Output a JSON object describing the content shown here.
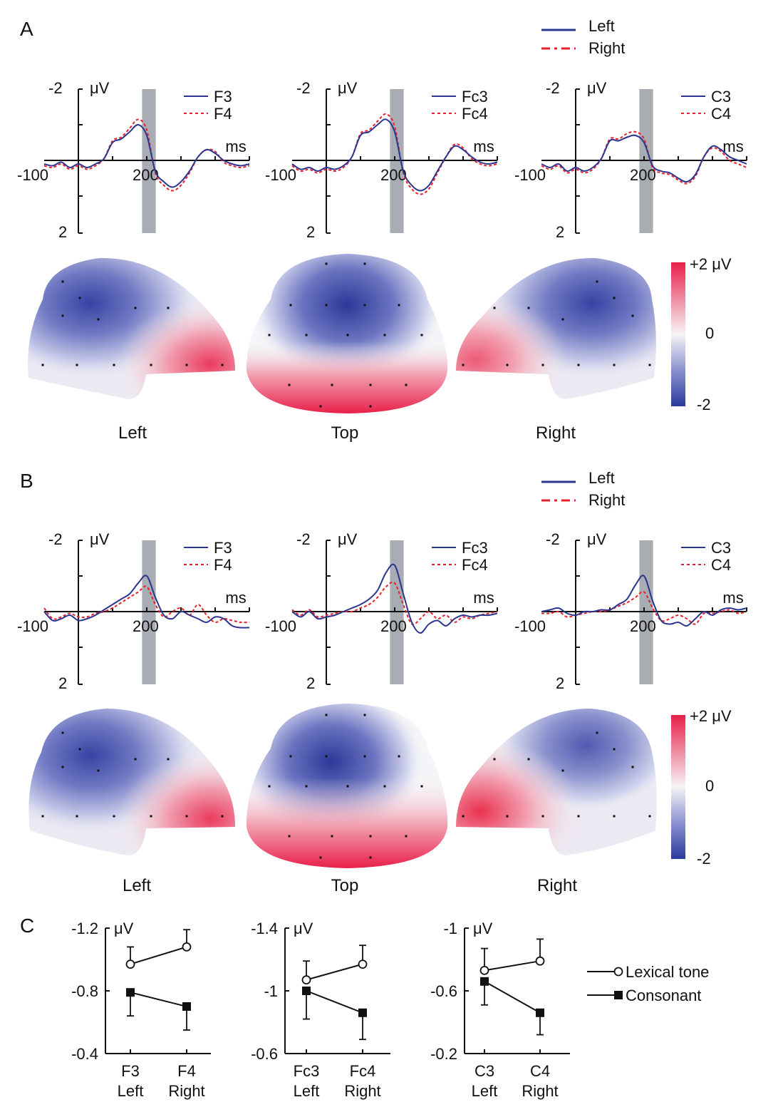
{
  "panels": [
    {
      "letter": "A",
      "legend": {
        "left": "Left",
        "right": "Right"
      },
      "waveforms": [
        {
          "top_label": "-2",
          "bottom_label": "2",
          "unit": "μV",
          "xunit": "ms",
          "x_tick_left": "-100",
          "x_tick_mid": "200",
          "series_left": "F3",
          "series_right": "F4"
        },
        {
          "top_label": "-2",
          "bottom_label": "2",
          "unit": "μV",
          "xunit": "ms",
          "x_tick_left": "-100",
          "x_tick_mid": "200",
          "series_left": "Fc3",
          "series_right": "Fc4"
        },
        {
          "top_label": "-2",
          "bottom_label": "2",
          "unit": "μV",
          "xunit": "ms",
          "x_tick_left": "-100",
          "x_tick_mid": "200",
          "series_left": "C3",
          "series_right": "C4"
        }
      ],
      "views": [
        "Left",
        "Top",
        "Right"
      ],
      "colorbar": {
        "max": "+2 μV",
        "mid": "0",
        "min": "-2"
      }
    },
    {
      "letter": "B",
      "legend": {
        "left": "Left",
        "right": "Right"
      },
      "waveforms": [
        {
          "top_label": "-2",
          "bottom_label": "2",
          "unit": "μV",
          "xunit": "ms",
          "x_tick_left": "-100",
          "x_tick_mid": "200",
          "series_left": "F3",
          "series_right": "F4"
        },
        {
          "top_label": "-2",
          "bottom_label": "2",
          "unit": "μV",
          "xunit": "ms",
          "x_tick_left": "-100",
          "x_tick_mid": "200",
          "series_left": "Fc3",
          "series_right": "Fc4"
        },
        {
          "top_label": "-2",
          "bottom_label": "2",
          "unit": "μV",
          "xunit": "ms",
          "x_tick_left": "-100",
          "x_tick_mid": "200",
          "series_left": "C3",
          "series_right": "C4"
        }
      ],
      "views": [
        "Left",
        "Top",
        "Right"
      ],
      "colorbar": {
        "max": "+2 μV",
        "mid": "0",
        "min": "-2"
      }
    }
  ],
  "panel_c": {
    "letter": "C"
  },
  "colors": {
    "left_series": "#2b3590",
    "right_series": "#e8202a",
    "shade": "#a7adb2",
    "neg": "#2a3a9c",
    "pos": "#e8204a"
  },
  "chart_data": [
    {
      "type": "line",
      "id": "A-F3",
      "xunit": "ms",
      "yunit": "μV",
      "xlim": [
        -100,
        500
      ],
      "ylim": [
        -2,
        2
      ],
      "inverted_y": true,
      "shaded_window_ms": [
        180,
        220
      ],
      "x": [
        -100,
        -75,
        -50,
        -25,
        0,
        25,
        50,
        75,
        100,
        125,
        150,
        175,
        200,
        225,
        250,
        275,
        300,
        325,
        350,
        375,
        400,
        425,
        450,
        475,
        500
      ],
      "series": [
        {
          "name": "F3",
          "values": [
            0.1,
            0.15,
            0.05,
            0.2,
            0.1,
            0.2,
            0.1,
            -0.05,
            -0.5,
            -0.6,
            -0.8,
            -1.0,
            -0.7,
            0.3,
            0.6,
            0.75,
            0.6,
            0.3,
            -0.1,
            -0.3,
            -0.2,
            0.0,
            0.1,
            0.15,
            0.1
          ]
        },
        {
          "name": "F4",
          "values": [
            0.15,
            0.2,
            0.1,
            0.25,
            0.15,
            0.25,
            0.15,
            -0.05,
            -0.55,
            -0.65,
            -0.9,
            -1.15,
            -0.85,
            0.35,
            0.7,
            0.85,
            0.7,
            0.35,
            -0.1,
            -0.3,
            -0.25,
            0.05,
            0.15,
            0.2,
            0.15
          ]
        }
      ]
    },
    {
      "type": "line",
      "id": "A-Fc3",
      "xunit": "ms",
      "yunit": "μV",
      "xlim": [
        -100,
        500
      ],
      "ylim": [
        -2,
        2
      ],
      "inverted_y": true,
      "shaded_window_ms": [
        180,
        220
      ],
      "x": [
        -100,
        -75,
        -50,
        -25,
        0,
        25,
        50,
        75,
        100,
        125,
        150,
        175,
        200,
        225,
        250,
        275,
        300,
        325,
        350,
        375,
        400,
        425,
        450,
        475,
        500
      ],
      "series": [
        {
          "name": "Fc3",
          "values": [
            0.1,
            0.25,
            0.2,
            0.3,
            0.2,
            0.25,
            0.15,
            -0.1,
            -0.7,
            -0.8,
            -1.0,
            -1.15,
            -0.8,
            0.3,
            0.7,
            0.85,
            0.7,
            0.3,
            -0.1,
            -0.4,
            -0.3,
            -0.1,
            0.05,
            0.1,
            0.05
          ]
        },
        {
          "name": "Fc4",
          "values": [
            0.15,
            0.3,
            0.25,
            0.35,
            0.25,
            0.3,
            0.2,
            -0.1,
            -0.75,
            -0.85,
            -1.1,
            -1.3,
            -0.95,
            0.35,
            0.8,
            0.95,
            0.8,
            0.35,
            -0.1,
            -0.45,
            -0.35,
            -0.05,
            0.1,
            0.15,
            0.1
          ]
        }
      ]
    },
    {
      "type": "line",
      "id": "A-C3",
      "xunit": "ms",
      "yunit": "μV",
      "xlim": [
        -100,
        500
      ],
      "ylim": [
        -2,
        2
      ],
      "inverted_y": true,
      "shaded_window_ms": [
        180,
        220
      ],
      "x": [
        -100,
        -75,
        -50,
        -25,
        0,
        25,
        50,
        75,
        100,
        125,
        150,
        175,
        200,
        225,
        250,
        275,
        300,
        325,
        350,
        375,
        400,
        425,
        450,
        475,
        500
      ],
      "series": [
        {
          "name": "C3",
          "values": [
            0.1,
            0.2,
            0.1,
            0.3,
            0.2,
            0.3,
            0.2,
            -0.05,
            -0.55,
            -0.55,
            -0.65,
            -0.7,
            -0.5,
            0.15,
            0.3,
            0.35,
            0.5,
            0.6,
            0.4,
            -0.1,
            -0.4,
            -0.3,
            -0.1,
            0.0,
            0.1
          ]
        },
        {
          "name": "C4",
          "values": [
            0.15,
            0.25,
            0.15,
            0.35,
            0.25,
            0.35,
            0.25,
            -0.05,
            -0.6,
            -0.6,
            -0.75,
            -0.8,
            -0.6,
            0.2,
            0.35,
            0.4,
            0.55,
            0.65,
            0.45,
            -0.1,
            -0.35,
            -0.25,
            0.0,
            0.1,
            0.2
          ]
        }
      ]
    },
    {
      "type": "line",
      "id": "B-F3",
      "xunit": "ms",
      "yunit": "μV",
      "xlim": [
        -100,
        500
      ],
      "ylim": [
        -2,
        2
      ],
      "inverted_y": true,
      "shaded_window_ms": [
        180,
        220
      ],
      "x": [
        -100,
        -75,
        -50,
        -25,
        0,
        25,
        50,
        75,
        100,
        125,
        150,
        175,
        200,
        225,
        250,
        275,
        300,
        325,
        350,
        375,
        400,
        425,
        450,
        475,
        500
      ],
      "series": [
        {
          "name": "F3",
          "values": [
            0.0,
            0.25,
            0.2,
            0.1,
            0.25,
            0.2,
            0.1,
            -0.05,
            -0.2,
            -0.35,
            -0.5,
            -0.8,
            -1.0,
            -0.4,
            0.1,
            0.2,
            0.0,
            0.1,
            0.2,
            0.3,
            0.15,
            0.2,
            0.4,
            0.45,
            0.45
          ]
        },
        {
          "name": "F4",
          "values": [
            -0.1,
            0.2,
            0.15,
            0.05,
            0.15,
            0.15,
            0.05,
            0.0,
            -0.1,
            -0.25,
            -0.4,
            -0.55,
            -0.7,
            -0.2,
            0.15,
            0.0,
            -0.1,
            0.1,
            -0.2,
            0.1,
            0.3,
            0.2,
            0.25,
            0.3,
            0.3
          ]
        }
      ]
    },
    {
      "type": "line",
      "id": "B-Fc3",
      "xunit": "ms",
      "yunit": "μV",
      "xlim": [
        -100,
        500
      ],
      "ylim": [
        -2,
        2
      ],
      "inverted_y": true,
      "shaded_window_ms": [
        180,
        220
      ],
      "x": [
        -100,
        -75,
        -50,
        -25,
        0,
        25,
        50,
        75,
        100,
        125,
        150,
        175,
        200,
        225,
        250,
        275,
        300,
        325,
        350,
        375,
        400,
        425,
        450,
        475,
        500
      ],
      "series": [
        {
          "name": "Fc3",
          "values": [
            0.0,
            0.15,
            0.0,
            0.2,
            0.15,
            0.1,
            0.0,
            -0.1,
            -0.2,
            -0.35,
            -0.6,
            -1.1,
            -1.3,
            -0.5,
            0.3,
            0.6,
            0.35,
            0.25,
            0.4,
            0.2,
            0.1,
            0.15,
            0.1,
            0.1,
            0.05
          ]
        },
        {
          "name": "Fc4",
          "values": [
            -0.05,
            0.1,
            -0.05,
            0.15,
            0.1,
            0.05,
            0.0,
            0.0,
            -0.1,
            -0.2,
            -0.4,
            -0.7,
            -0.8,
            -0.2,
            0.35,
            0.2,
            0.0,
            0.2,
            0.1,
            0.3,
            0.15,
            0.2,
            0.1,
            0.05,
            0.0
          ]
        }
      ]
    },
    {
      "type": "line",
      "id": "B-C3",
      "xunit": "ms",
      "yunit": "μV",
      "xlim": [
        -100,
        500
      ],
      "ylim": [
        -2,
        2
      ],
      "inverted_y": true,
      "shaded_window_ms": [
        180,
        220
      ],
      "x": [
        -100,
        -75,
        -50,
        -25,
        0,
        25,
        50,
        75,
        100,
        125,
        150,
        175,
        200,
        225,
        250,
        275,
        300,
        325,
        350,
        375,
        400,
        425,
        450,
        475,
        500
      ],
      "series": [
        {
          "name": "C3",
          "values": [
            0.0,
            -0.05,
            -0.1,
            0.05,
            0.1,
            0.0,
            0.0,
            -0.05,
            -0.05,
            -0.2,
            -0.35,
            -0.75,
            -1.0,
            -0.3,
            0.25,
            0.35,
            0.3,
            0.4,
            0.2,
            0.0,
            0.1,
            -0.05,
            -0.1,
            -0.05,
            -0.1
          ]
        },
        {
          "name": "C4",
          "values": [
            0.05,
            0.05,
            0.0,
            0.15,
            0.1,
            0.05,
            0.0,
            0.0,
            -0.05,
            -0.15,
            -0.25,
            -0.4,
            -0.55,
            -0.1,
            0.25,
            0.2,
            0.1,
            0.2,
            0.35,
            0.05,
            0.05,
            0.0,
            -0.05,
            0.05,
            0.0
          ]
        }
      ]
    },
    {
      "type": "line",
      "id": "C-1",
      "yunit": "μV",
      "ylim": [
        -1.2,
        -0.4
      ],
      "y_ticks": [
        "-1.2",
        "-0.8",
        "-0.4"
      ],
      "categories": [
        [
          "F3",
          "Left"
        ],
        [
          "F4",
          "Right"
        ]
      ],
      "series": [
        {
          "name": "Lexical tone",
          "marker": "open-circle",
          "values": [
            -0.97,
            -1.08
          ],
          "errors": [
            0.11,
            0.11
          ]
        },
        {
          "name": "Consonant",
          "marker": "filled-square",
          "values": [
            -0.79,
            -0.7
          ],
          "errors": [
            0.15,
            0.15
          ]
        }
      ]
    },
    {
      "type": "line",
      "id": "C-2",
      "yunit": "μV",
      "ylim": [
        -1.4,
        -0.6
      ],
      "y_ticks": [
        "-1.4",
        "-1",
        "-0.6"
      ],
      "categories": [
        [
          "Fc3",
          "Left"
        ],
        [
          "Fc4",
          "Right"
        ]
      ],
      "series": [
        {
          "name": "Lexical tone",
          "marker": "open-circle",
          "values": [
            -1.07,
            -1.17
          ],
          "errors": [
            0.12,
            0.12
          ]
        },
        {
          "name": "Consonant",
          "marker": "filled-square",
          "values": [
            -1.0,
            -0.86
          ],
          "errors": [
            0.18,
            0.17
          ]
        }
      ]
    },
    {
      "type": "line",
      "id": "C-3",
      "yunit": "μV",
      "ylim": [
        -1.0,
        -0.2
      ],
      "y_ticks": [
        "-1",
        "-0.6",
        "-0.2"
      ],
      "categories": [
        [
          "C3",
          "Left"
        ],
        [
          "C4",
          "Right"
        ]
      ],
      "series": [
        {
          "name": "Lexical tone",
          "marker": "open-circle",
          "values": [
            -0.73,
            -0.79
          ],
          "errors": [
            0.14,
            0.14
          ]
        },
        {
          "name": "Consonant",
          "marker": "filled-square",
          "values": [
            -0.66,
            -0.46
          ],
          "errors": [
            0.15,
            0.14
          ]
        }
      ]
    }
  ],
  "panel_c_legend": {
    "tone": "Lexical tone",
    "consonant": "Consonant"
  }
}
